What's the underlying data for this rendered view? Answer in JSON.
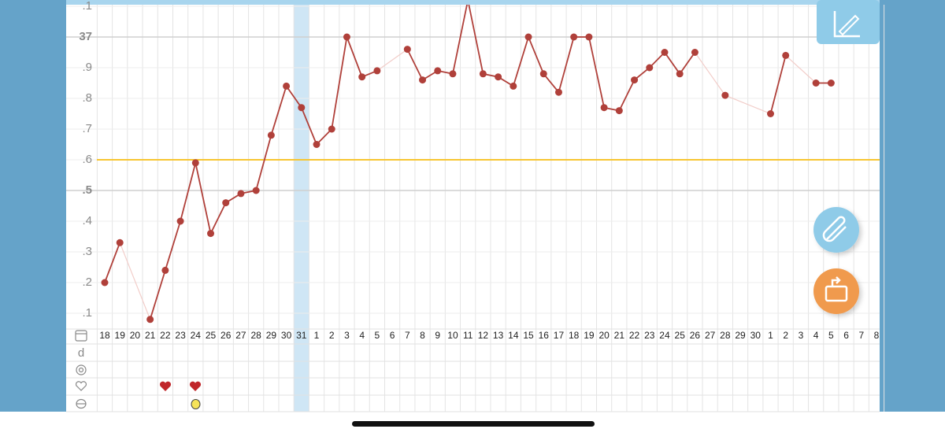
{
  "chart_data": {
    "type": "line",
    "categories": [
      "18",
      "19",
      "20",
      "21",
      "22",
      "23",
      "24",
      "25",
      "26",
      "27",
      "28",
      "29",
      "30",
      "31",
      "1",
      "2",
      "3",
      "4",
      "5",
      "6",
      "7",
      "8",
      "9",
      "10",
      "11",
      "12",
      "13",
      "14",
      "15",
      "16",
      "17",
      "18",
      "19",
      "20",
      "21",
      "22",
      "23",
      "24",
      "25",
      "26",
      "27",
      "28",
      "29",
      "30",
      "1",
      "2",
      "3",
      "4",
      "5",
      "6",
      "7",
      "8"
    ],
    "values": [
      36.2,
      36.33,
      null,
      36.08,
      36.24,
      36.4,
      36.59,
      36.36,
      36.46,
      36.49,
      36.5,
      36.68,
      36.84,
      36.77,
      36.65,
      36.7,
      37.0,
      36.87,
      36.89,
      null,
      36.96,
      36.86,
      36.89,
      36.88,
      37.12,
      36.88,
      36.87,
      36.84,
      37.0,
      36.88,
      36.82,
      37.0,
      37.0,
      36.77,
      36.76,
      36.86,
      36.9,
      36.95,
      36.88,
      36.95,
      null,
      36.81,
      null,
      null,
      36.75,
      36.94,
      null,
      36.85,
      36.85,
      null,
      null,
      null
    ],
    "color": "#b0403a",
    "gap_color": "#f2cdc9",
    "coverline": {
      "value": 36.6,
      "color": "#f7c531"
    },
    "ylim": [
      36.05,
      37.1
    ],
    "yticks": [
      {
        "value": 36.1,
        "label": ".1"
      },
      {
        "value": 36.2,
        "label": ".2"
      },
      {
        "value": 36.3,
        "label": ".3"
      },
      {
        "value": 36.4,
        "label": ".4"
      },
      {
        "value": 36.5,
        "label": ".5"
      },
      {
        "value": 36.6,
        "label": ".6"
      },
      {
        "value": 36.7,
        "label": ".7"
      },
      {
        "value": 36.8,
        "label": ".8"
      },
      {
        "value": 36.9,
        "label": ".9"
      },
      37,
      {
        "value": 37.1,
        "label": ".1"
      }
    ],
    "grid": true
  }
}
